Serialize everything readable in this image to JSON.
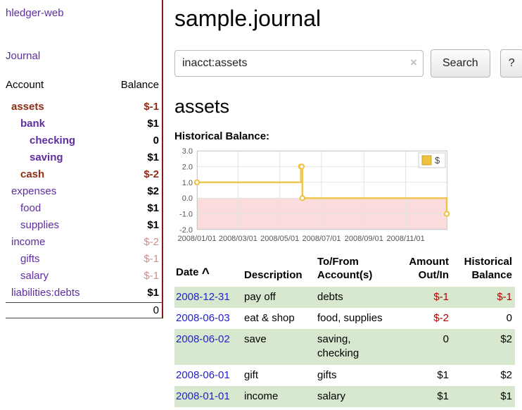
{
  "colors": {
    "link_purple": "#5f2da0",
    "negative_dark": "#8f2d16",
    "negative_muted": "#c4918c",
    "register_negative": "#b30000",
    "date_blue": "#2222cc",
    "row_green": "#d8e8cf",
    "divider_maroon": "#7e1f15",
    "chart_line": "#edc240",
    "chart_negative_fill": "#fbdcdc"
  },
  "sidebar": {
    "brand": "hledger-web",
    "journal_link": "Journal",
    "columns": {
      "account": "Account",
      "balance": "Balance"
    },
    "accounts": [
      {
        "name": "assets",
        "indent": 0,
        "balance": "$-1",
        "emph": true,
        "name_color": "negative",
        "balance_color": "negative"
      },
      {
        "name": "bank",
        "indent": 1,
        "balance": "$1",
        "emph": true,
        "name_color": "link",
        "balance_color": "normal"
      },
      {
        "name": "checking",
        "indent": 2,
        "balance": "0",
        "emph": true,
        "name_color": "link",
        "balance_color": "normal"
      },
      {
        "name": "saving",
        "indent": 2,
        "balance": "$1",
        "emph": true,
        "name_color": "link",
        "balance_color": "normal"
      },
      {
        "name": "cash",
        "indent": 1,
        "balance": "$-2",
        "emph": true,
        "name_color": "negative",
        "balance_color": "negative"
      },
      {
        "name": "expenses",
        "indent": 0,
        "balance": "$2",
        "emph": false,
        "name_color": "link",
        "balance_color": "normal"
      },
      {
        "name": "food",
        "indent": 1,
        "balance": "$1",
        "emph": false,
        "name_color": "link",
        "balance_color": "normal"
      },
      {
        "name": "supplies",
        "indent": 1,
        "balance": "$1",
        "emph": false,
        "name_color": "link",
        "balance_color": "normal"
      },
      {
        "name": "income",
        "indent": 0,
        "balance": "$-2",
        "emph": false,
        "name_color": "link",
        "balance_color": "muted"
      },
      {
        "name": "gifts",
        "indent": 1,
        "balance": "$-1",
        "emph": false,
        "name_color": "link",
        "balance_color": "muted"
      },
      {
        "name": "salary",
        "indent": 1,
        "balance": "$-1",
        "emph": false,
        "name_color": "link",
        "balance_color": "muted"
      },
      {
        "name": "liabilities:debts",
        "indent": 0,
        "balance": "$1",
        "emph": false,
        "name_color": "link",
        "balance_color": "normal"
      }
    ],
    "total": "0"
  },
  "header": {
    "title": "sample.journal"
  },
  "search": {
    "value": "inacct:assets",
    "clear_label": "×",
    "button": "Search",
    "help_button": "?"
  },
  "account_page": {
    "heading": "assets",
    "chart_label": "Historical Balance:"
  },
  "chart_data": {
    "type": "line",
    "step": true,
    "title": "Historical Balance:",
    "series": [
      {
        "name": "$",
        "color": "#edc240",
        "points": [
          [
            "2008-01-01",
            1
          ],
          [
            "2008-06-01",
            2
          ],
          [
            "2008-06-02",
            2
          ],
          [
            "2008-06-03",
            0
          ],
          [
            "2008-12-31",
            -1
          ]
        ]
      }
    ],
    "x_range": [
      "2008-01-01",
      "2009-01-01"
    ],
    "x_ticks": [
      "2008/01/01",
      "2008/03/01",
      "2008/05/01",
      "2008/07/01",
      "2008/09/01",
      "2008/11/01"
    ],
    "y_ticks": [
      3.0,
      2.0,
      1.0,
      0.0,
      -1.0,
      -2.0
    ],
    "ylim": [
      -2,
      3
    ],
    "legend": "$",
    "legend_position": "top-right",
    "grid": true,
    "negative_region_fill": "#fbdcdc"
  },
  "register": {
    "headers": {
      "date": "Date",
      "sort_caret": "^",
      "description": "Description",
      "accounts": "To/From Account(s)",
      "amount": "Amount Out/In",
      "balance": "Historical Balance"
    },
    "rows": [
      {
        "date": "2008-12-31",
        "description": "pay off",
        "accounts": "debts",
        "amount": "$-1",
        "amount_neg": true,
        "balance": "$-1",
        "balance_neg": true,
        "shaded": true
      },
      {
        "date": "2008-06-03",
        "description": "eat & shop",
        "accounts": "food, supplies",
        "amount": "$-2",
        "amount_neg": true,
        "balance": "0",
        "balance_neg": false,
        "shaded": false
      },
      {
        "date": "2008-06-02",
        "description": "save",
        "accounts": "saving,\nchecking",
        "amount": "0",
        "amount_neg": false,
        "balance": "$2",
        "balance_neg": false,
        "shaded": true
      },
      {
        "date": "2008-06-01",
        "description": "gift",
        "accounts": "gifts",
        "amount": "$1",
        "amount_neg": false,
        "balance": "$2",
        "balance_neg": false,
        "shaded": false
      },
      {
        "date": "2008-01-01",
        "description": "income",
        "accounts": "salary",
        "amount": "$1",
        "amount_neg": false,
        "balance": "$1",
        "balance_neg": false,
        "shaded": true
      }
    ]
  }
}
